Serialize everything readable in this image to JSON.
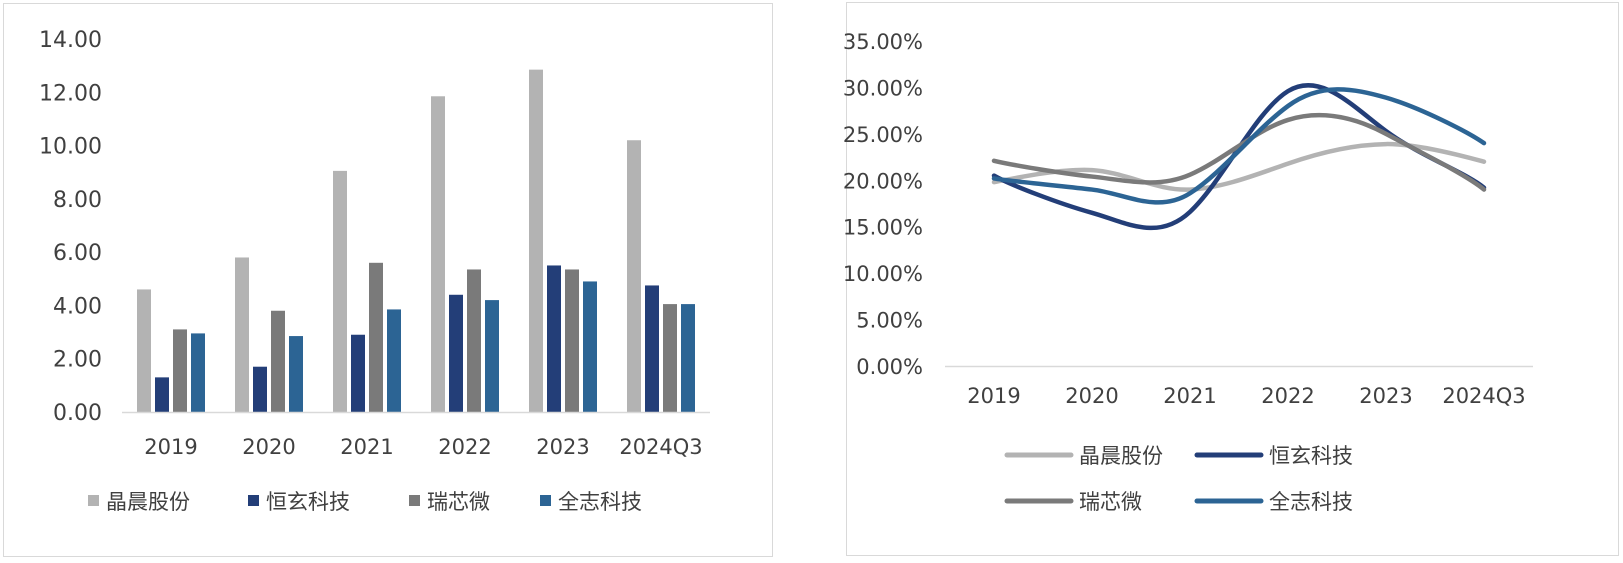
{
  "colors": {
    "晶晨股份": "#b3b3b3",
    "恒玄科技": "#233e78",
    "瑞芯微": "#7a7a7a",
    "全志科技": "#2c6494",
    "axis": "#d9d9d9",
    "text": "#404040"
  },
  "chart_data": [
    {
      "type": "bar",
      "title": "",
      "xlabel": "",
      "ylabel": "",
      "categories": [
        "2019",
        "2020",
        "2021",
        "2022",
        "2023",
        "2024Q3"
      ],
      "ylim": [
        0,
        14
      ],
      "yticks": [
        "0.00",
        "2.00",
        "4.00",
        "6.00",
        "8.00",
        "10.00",
        "12.00",
        "14.00"
      ],
      "grid": false,
      "legend_position": "bottom",
      "series": [
        {
          "name": "晶晨股份",
          "values": [
            4.6,
            5.8,
            9.05,
            11.85,
            12.85,
            10.2
          ]
        },
        {
          "name": "恒玄科技",
          "values": [
            1.3,
            1.7,
            2.9,
            4.4,
            5.5,
            4.75
          ]
        },
        {
          "name": "瑞芯微",
          "values": [
            3.1,
            3.8,
            5.6,
            5.35,
            5.35,
            4.05
          ]
        },
        {
          "name": "全志科技",
          "values": [
            2.95,
            2.85,
            3.85,
            4.2,
            4.9,
            4.05
          ]
        }
      ]
    },
    {
      "type": "line",
      "title": "",
      "xlabel": "",
      "ylabel": "",
      "categories": [
        "2019",
        "2020",
        "2021",
        "2022",
        "2023",
        "2024Q3"
      ],
      "ylim": [
        0,
        0.35
      ],
      "yticks": [
        "0.00%",
        "5.00%",
        "10.00%",
        "15.00%",
        "20.00%",
        "25.00%",
        "30.00%",
        "35.00%"
      ],
      "grid": false,
      "legend_position": "bottom",
      "series": [
        {
          "name": "晶晨股份",
          "values": [
            0.198,
            0.211,
            0.19,
            0.218,
            0.239,
            0.22
          ]
        },
        {
          "name": "恒玄科技",
          "values": [
            0.205,
            0.165,
            0.166,
            0.296,
            0.253,
            0.192
          ]
        },
        {
          "name": "瑞芯微",
          "values": [
            0.221,
            0.204,
            0.206,
            0.265,
            0.25,
            0.19
          ]
        },
        {
          "name": "全志科技",
          "values": [
            0.202,
            0.19,
            0.186,
            0.28,
            0.289,
            0.24
          ]
        }
      ]
    }
  ]
}
